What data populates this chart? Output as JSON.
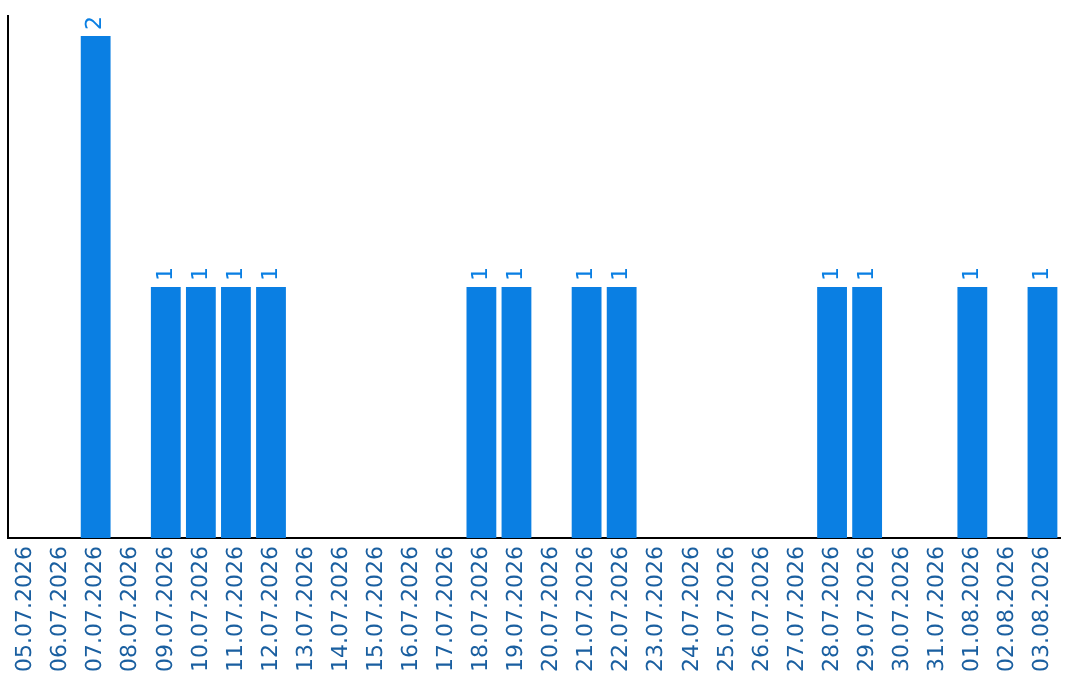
{
  "chart_data": {
    "type": "bar",
    "color": "#0a7fe3",
    "categories": [
      "05.07.2026",
      "06.07.2026",
      "07.07.2026",
      "08.07.2026",
      "09.07.2026",
      "10.07.2026",
      "11.07.2026",
      "12.07.2026",
      "13.07.2026",
      "14.07.2026",
      "15.07.2026",
      "16.07.2026",
      "17.07.2026",
      "18.07.2026",
      "19.07.2026",
      "20.07.2026",
      "21.07.2026",
      "22.07.2026",
      "23.07.2026",
      "24.07.2026",
      "25.07.2026",
      "26.07.2026",
      "27.07.2026",
      "28.07.2026",
      "29.07.2026",
      "30.07.2026",
      "31.07.2026",
      "01.08.2026",
      "02.08.2026",
      "03.08.2026"
    ],
    "values": [
      null,
      null,
      2,
      null,
      1,
      1,
      1,
      1,
      null,
      null,
      null,
      null,
      null,
      1,
      1,
      null,
      1,
      1,
      null,
      null,
      null,
      null,
      null,
      1,
      1,
      null,
      null,
      1,
      null,
      1
    ],
    "data_labels": true,
    "grid": false,
    "legend": false
  }
}
